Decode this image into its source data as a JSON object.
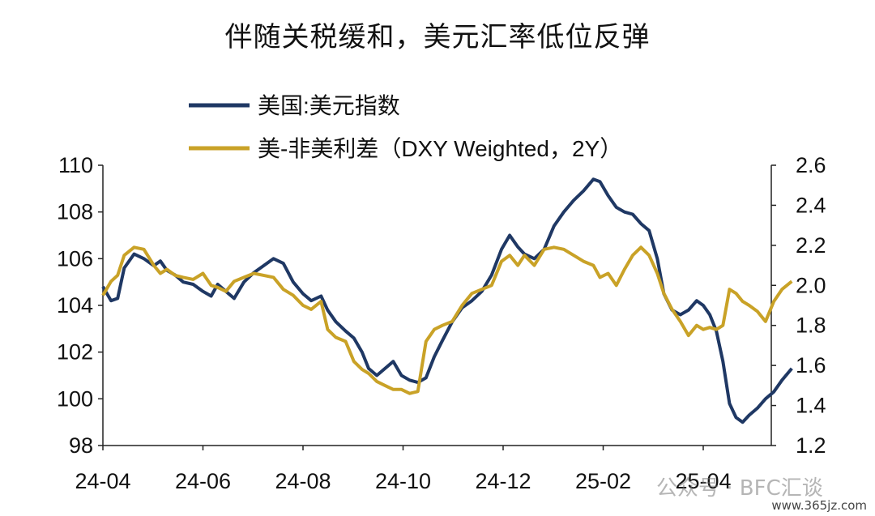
{
  "chart_data": {
    "type": "line",
    "title": "伴随关税缓和，美元汇率低位反弹",
    "x_ticks": [
      "24-04",
      "24-06",
      "24-08",
      "24-10",
      "24-12",
      "25-02",
      "25-04"
    ],
    "y_left": {
      "ticks": [
        "98",
        "100",
        "102",
        "104",
        "106",
        "108",
        "110"
      ],
      "lim": [
        98,
        110
      ]
    },
    "y_right": {
      "ticks": [
        "1.2",
        "1.4",
        "1.6",
        "1.8",
        "2.0",
        "2.2",
        "2.4",
        "2.6"
      ],
      "lim": [
        1.2,
        2.6
      ]
    },
    "grid": false,
    "legend_position": "top-left",
    "series": [
      {
        "name": "美国:美元指数",
        "axis": "left",
        "color": "#1f3864",
        "points": [
          [
            "2024-04-01",
            104.8
          ],
          [
            "2024-04-06",
            104.2
          ],
          [
            "2024-04-10",
            104.3
          ],
          [
            "2024-04-14",
            105.6
          ],
          [
            "2024-04-20",
            106.2
          ],
          [
            "2024-04-26",
            106.0
          ],
          [
            "2024-05-02",
            105.7
          ],
          [
            "2024-05-06",
            105.9
          ],
          [
            "2024-05-10",
            105.5
          ],
          [
            "2024-05-15",
            105.3
          ],
          [
            "2024-05-20",
            105.0
          ],
          [
            "2024-05-26",
            104.9
          ],
          [
            "2024-06-01",
            104.6
          ],
          [
            "2024-06-06",
            104.4
          ],
          [
            "2024-06-10",
            104.9
          ],
          [
            "2024-06-15",
            104.6
          ],
          [
            "2024-06-20",
            104.3
          ],
          [
            "2024-06-26",
            105.0
          ],
          [
            "2024-07-02",
            105.4
          ],
          [
            "2024-07-08",
            105.7
          ],
          [
            "2024-07-14",
            106.0
          ],
          [
            "2024-07-20",
            105.8
          ],
          [
            "2024-07-26",
            105.0
          ],
          [
            "2024-08-01",
            104.5
          ],
          [
            "2024-08-06",
            104.2
          ],
          [
            "2024-08-12",
            104.4
          ],
          [
            "2024-08-16",
            103.8
          ],
          [
            "2024-08-21",
            103.3
          ],
          [
            "2024-08-27",
            102.9
          ],
          [
            "2024-09-01",
            102.6
          ],
          [
            "2024-09-06",
            102.0
          ],
          [
            "2024-09-10",
            101.3
          ],
          [
            "2024-09-15",
            101.0
          ],
          [
            "2024-09-20",
            101.3
          ],
          [
            "2024-09-25",
            101.6
          ],
          [
            "2024-09-30",
            101.0
          ],
          [
            "2024-10-05",
            100.8
          ],
          [
            "2024-10-10",
            100.7
          ],
          [
            "2024-10-15",
            100.9
          ],
          [
            "2024-10-20",
            101.8
          ],
          [
            "2024-10-25",
            102.5
          ],
          [
            "2024-10-31",
            103.3
          ],
          [
            "2024-11-06",
            103.9
          ],
          [
            "2024-11-12",
            104.2
          ],
          [
            "2024-11-18",
            104.6
          ],
          [
            "2024-11-24",
            105.3
          ],
          [
            "2024-11-30",
            106.4
          ],
          [
            "2024-12-05",
            107.0
          ],
          [
            "2024-12-10",
            106.5
          ],
          [
            "2024-12-14",
            106.2
          ],
          [
            "2024-12-20",
            106.0
          ],
          [
            "2024-12-26",
            106.4
          ],
          [
            "2025-01-01",
            107.4
          ],
          [
            "2025-01-07",
            108.0
          ],
          [
            "2025-01-13",
            108.5
          ],
          [
            "2025-01-19",
            108.9
          ],
          [
            "2025-01-25",
            109.4
          ],
          [
            "2025-01-29",
            109.3
          ],
          [
            "2025-02-03",
            108.7
          ],
          [
            "2025-02-08",
            108.2
          ],
          [
            "2025-02-13",
            108.0
          ],
          [
            "2025-02-18",
            107.9
          ],
          [
            "2025-02-23",
            107.5
          ],
          [
            "2025-02-28",
            107.2
          ],
          [
            "2025-03-05",
            106.0
          ],
          [
            "2025-03-09",
            104.5
          ],
          [
            "2025-03-14",
            103.8
          ],
          [
            "2025-03-19",
            103.6
          ],
          [
            "2025-03-24",
            103.8
          ],
          [
            "2025-03-29",
            104.2
          ],
          [
            "2025-04-02",
            104.0
          ],
          [
            "2025-04-06",
            103.6
          ],
          [
            "2025-04-10",
            102.9
          ],
          [
            "2025-04-14",
            101.6
          ],
          [
            "2025-04-18",
            99.8
          ],
          [
            "2025-04-22",
            99.2
          ],
          [
            "2025-04-26",
            99.0
          ],
          [
            "2025-04-30",
            99.3
          ],
          [
            "2025-05-05",
            99.6
          ],
          [
            "2025-05-10",
            100.0
          ],
          [
            "2025-05-15",
            100.3
          ],
          [
            "2025-05-20",
            100.8
          ],
          [
            "2025-05-26",
            101.3
          ]
        ]
      },
      {
        "name": "美-非美利差（DXY Weighted，2Y）",
        "axis": "right",
        "color": "#c9a227",
        "points": [
          [
            "2024-04-01",
            1.95
          ],
          [
            "2024-04-06",
            2.02
          ],
          [
            "2024-04-10",
            2.05
          ],
          [
            "2024-04-14",
            2.15
          ],
          [
            "2024-04-20",
            2.19
          ],
          [
            "2024-04-26",
            2.18
          ],
          [
            "2024-05-02",
            2.1
          ],
          [
            "2024-05-06",
            2.06
          ],
          [
            "2024-05-10",
            2.08
          ],
          [
            "2024-05-15",
            2.05
          ],
          [
            "2024-05-20",
            2.04
          ],
          [
            "2024-05-26",
            2.03
          ],
          [
            "2024-06-01",
            2.06
          ],
          [
            "2024-06-06",
            2.0
          ],
          [
            "2024-06-10",
            1.99
          ],
          [
            "2024-06-15",
            1.97
          ],
          [
            "2024-06-20",
            2.02
          ],
          [
            "2024-06-26",
            2.04
          ],
          [
            "2024-07-02",
            2.06
          ],
          [
            "2024-07-08",
            2.05
          ],
          [
            "2024-07-14",
            2.04
          ],
          [
            "2024-07-20",
            1.98
          ],
          [
            "2024-07-26",
            1.95
          ],
          [
            "2024-08-01",
            1.9
          ],
          [
            "2024-08-06",
            1.88
          ],
          [
            "2024-08-12",
            1.92
          ],
          [
            "2024-08-16",
            1.78
          ],
          [
            "2024-08-21",
            1.74
          ],
          [
            "2024-08-27",
            1.72
          ],
          [
            "2024-09-01",
            1.62
          ],
          [
            "2024-09-06",
            1.58
          ],
          [
            "2024-09-10",
            1.56
          ],
          [
            "2024-09-15",
            1.52
          ],
          [
            "2024-09-20",
            1.5
          ],
          [
            "2024-09-25",
            1.48
          ],
          [
            "2024-09-30",
            1.48
          ],
          [
            "2024-10-05",
            1.46
          ],
          [
            "2024-10-10",
            1.47
          ],
          [
            "2024-10-15",
            1.72
          ],
          [
            "2024-10-20",
            1.78
          ],
          [
            "2024-10-25",
            1.8
          ],
          [
            "2024-10-31",
            1.82
          ],
          [
            "2024-11-06",
            1.9
          ],
          [
            "2024-11-12",
            1.96
          ],
          [
            "2024-11-18",
            1.98
          ],
          [
            "2024-11-24",
            2.0
          ],
          [
            "2024-11-30",
            2.12
          ],
          [
            "2024-12-05",
            2.15
          ],
          [
            "2024-12-10",
            2.1
          ],
          [
            "2024-12-14",
            2.15
          ],
          [
            "2024-12-20",
            2.1
          ],
          [
            "2024-12-26",
            2.18
          ],
          [
            "2025-01-01",
            2.19
          ],
          [
            "2025-01-07",
            2.18
          ],
          [
            "2025-01-13",
            2.15
          ],
          [
            "2025-01-19",
            2.12
          ],
          [
            "2025-01-25",
            2.1
          ],
          [
            "2025-01-29",
            2.04
          ],
          [
            "2025-02-03",
            2.06
          ],
          [
            "2025-02-08",
            2.0
          ],
          [
            "2025-02-13",
            2.08
          ],
          [
            "2025-02-18",
            2.15
          ],
          [
            "2025-02-23",
            2.19
          ],
          [
            "2025-02-28",
            2.15
          ],
          [
            "2025-03-05",
            2.06
          ],
          [
            "2025-03-09",
            1.96
          ],
          [
            "2025-03-14",
            1.88
          ],
          [
            "2025-03-19",
            1.82
          ],
          [
            "2025-03-24",
            1.75
          ],
          [
            "2025-03-29",
            1.8
          ],
          [
            "2025-04-02",
            1.78
          ],
          [
            "2025-04-06",
            1.79
          ],
          [
            "2025-04-10",
            1.78
          ],
          [
            "2025-04-14",
            1.8
          ],
          [
            "2025-04-18",
            1.98
          ],
          [
            "2025-04-22",
            1.96
          ],
          [
            "2025-04-26",
            1.92
          ],
          [
            "2025-04-30",
            1.9
          ],
          [
            "2025-05-05",
            1.87
          ],
          [
            "2025-05-10",
            1.82
          ],
          [
            "2025-05-15",
            1.92
          ],
          [
            "2025-05-20",
            1.98
          ],
          [
            "2025-05-26",
            2.02
          ]
        ]
      }
    ]
  },
  "watermark": {
    "text": "公众号 · BFC汇谈",
    "site": "www.365jz.com"
  }
}
